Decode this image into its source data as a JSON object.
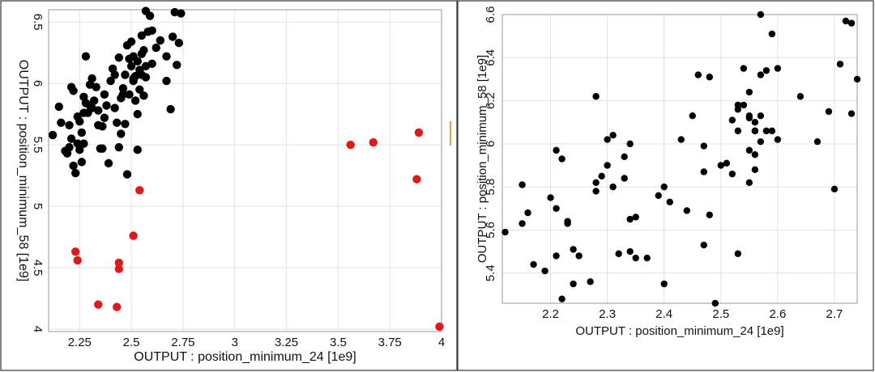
{
  "chart_data": [
    {
      "type": "scatter",
      "title": "",
      "xlabel": "OUTPUT : position_minimum_24 [1e9]",
      "ylabel": "OUTPUT : position_minimum_58 [1e9]",
      "xlim": [
        2.1,
        4.0
      ],
      "ylim": [
        3.98,
        6.6
      ],
      "xticks": [
        "2.25",
        "2.5",
        "2.75",
        "3",
        "3.25",
        "3.5",
        "3.75",
        "4"
      ],
      "yticks": [
        "4",
        "4.5",
        "5",
        "5.5",
        "6",
        "6.5"
      ],
      "grid": true,
      "series": [
        {
          "color": "#000000",
          "points": [
            [
              2.12,
              5.58
            ],
            [
              2.15,
              5.81
            ],
            [
              2.16,
              5.68
            ],
            [
              2.18,
              5.45
            ],
            [
              2.19,
              5.43
            ],
            [
              2.2,
              5.66
            ],
            [
              2.21,
              5.97
            ],
            [
              2.22,
              5.94
            ],
            [
              2.23,
              5.27
            ],
            [
              2.22,
              5.33
            ],
            [
              2.24,
              5.51
            ],
            [
              2.25,
              5.46
            ],
            [
              2.24,
              5.73
            ],
            [
              2.25,
              5.69
            ],
            [
              2.26,
              5.36
            ],
            [
              2.27,
              5.89
            ],
            [
              2.27,
              5.76
            ],
            [
              2.28,
              6.22
            ],
            [
              2.28,
              5.84
            ],
            [
              2.3,
              5.82
            ],
            [
              2.3,
              5.99
            ],
            [
              2.31,
              6.04
            ],
            [
              2.32,
              5.86
            ],
            [
              2.33,
              5.97
            ],
            [
              2.34,
              5.78
            ],
            [
              2.35,
              5.47
            ],
            [
              2.34,
              5.66
            ],
            [
              2.36,
              5.47
            ],
            [
              2.37,
              5.72
            ],
            [
              2.37,
              5.91
            ],
            [
              2.38,
              5.82
            ],
            [
              2.39,
              5.35
            ],
            [
              2.4,
              6.02
            ],
            [
              2.41,
              6.12
            ],
            [
              2.42,
              5.8
            ],
            [
              2.43,
              5.68
            ],
            [
              2.44,
              5.48
            ],
            [
              2.44,
              6.21
            ],
            [
              2.45,
              5.88
            ],
            [
              2.46,
              5.96
            ],
            [
              2.47,
              6.07
            ],
            [
              2.47,
              5.67
            ],
            [
              2.48,
              5.26
            ],
            [
              2.48,
              6.31
            ],
            [
              2.49,
              5.91
            ],
            [
              2.5,
              6.14
            ],
            [
              2.5,
              6.34
            ],
            [
              2.51,
              6.02
            ],
            [
              2.51,
              6.22
            ],
            [
              2.52,
              5.86
            ],
            [
              2.52,
              6.06
            ],
            [
              2.53,
              6.18
            ],
            [
              2.53,
              5.75
            ],
            [
              2.54,
              5.95
            ],
            [
              2.54,
              6.11
            ],
            [
              2.55,
              6.24
            ],
            [
              2.55,
              6.39
            ],
            [
              2.56,
              5.9
            ],
            [
              2.56,
              6.27
            ],
            [
              2.57,
              6.14
            ],
            [
              2.57,
              6.05
            ],
            [
              2.58,
              6.42
            ],
            [
              2.59,
              6.55
            ],
            [
              2.6,
              6.43
            ],
            [
              2.6,
              6.16
            ],
            [
              2.62,
              6.29
            ],
            [
              2.64,
              6.35
            ],
            [
              2.67,
              6.02
            ],
            [
              2.67,
              6.22
            ],
            [
              2.69,
              5.79
            ],
            [
              2.7,
              6.38
            ],
            [
              2.71,
              6.58
            ],
            [
              2.72,
              6.15
            ],
            [
              2.73,
              6.33
            ],
            [
              2.74,
              6.57
            ],
            [
              2.57,
              6.59
            ],
            [
              2.46,
              5.91
            ],
            [
              2.42,
              6.07
            ],
            [
              2.36,
              5.65
            ],
            [
              2.31,
              5.8
            ],
            [
              2.29,
              5.76
            ],
            [
              2.26,
              5.6
            ],
            [
              2.21,
              5.55
            ],
            [
              2.2,
              5.48
            ],
            [
              2.27,
              5.51
            ],
            [
              2.45,
              5.59
            ],
            [
              2.53,
              5.46
            ],
            [
              2.51,
              6.04
            ],
            [
              2.55,
              6.07
            ],
            [
              2.49,
              6.2
            ]
          ]
        },
        {
          "color": "#e11919",
          "points": [
            [
              2.23,
              4.63
            ],
            [
              2.24,
              4.56
            ],
            [
              2.34,
              4.2
            ],
            [
              2.43,
              4.18
            ],
            [
              2.44,
              4.54
            ],
            [
              2.44,
              4.49
            ],
            [
              2.51,
              4.76
            ],
            [
              2.54,
              5.13
            ],
            [
              3.56,
              5.5
            ],
            [
              3.67,
              5.52
            ],
            [
              3.88,
              5.22
            ],
            [
              3.89,
              5.6
            ],
            [
              3.99,
              4.02
            ]
          ]
        }
      ]
    },
    {
      "type": "scatter",
      "title": "",
      "xlabel": "OUTPUT : position_minimum_24 [1e9]",
      "ylabel": "OUTPUT : position_minimum_58 [1e9]",
      "xlim": [
        2.115,
        2.74
      ],
      "ylim": [
        5.26,
        6.6
      ],
      "xticks": [
        "2.2",
        "2.3",
        "2.4",
        "2.5",
        "2.6",
        "2.7"
      ],
      "yticks": [
        "5.4",
        "5.6",
        "5.8",
        "6",
        "6.2",
        "6.4",
        "6.6"
      ],
      "grid": true,
      "series": [
        {
          "color": "#000000",
          "points": [
            [
              2.12,
              5.59
            ],
            [
              2.15,
              5.81
            ],
            [
              2.15,
              5.63
            ],
            [
              2.16,
              5.68
            ],
            [
              2.17,
              5.44
            ],
            [
              2.19,
              5.41
            ],
            [
              2.2,
              5.75
            ],
            [
              2.21,
              5.97
            ],
            [
              2.21,
              5.7
            ],
            [
              2.21,
              5.48
            ],
            [
              2.22,
              5.93
            ],
            [
              2.22,
              5.28
            ],
            [
              2.23,
              5.64
            ],
            [
              2.23,
              5.63
            ],
            [
              2.24,
              5.35
            ],
            [
              2.24,
              5.51
            ],
            [
              2.25,
              5.48
            ],
            [
              2.27,
              5.36
            ],
            [
              2.28,
              6.22
            ],
            [
              2.28,
              5.82
            ],
            [
              2.28,
              5.78
            ],
            [
              2.29,
              5.85
            ],
            [
              2.3,
              5.9
            ],
            [
              2.3,
              6.02
            ],
            [
              2.31,
              6.04
            ],
            [
              2.31,
              5.8
            ],
            [
              2.32,
              5.49
            ],
            [
              2.33,
              5.94
            ],
            [
              2.33,
              5.84
            ],
            [
              2.34,
              6.0
            ],
            [
              2.34,
              5.65
            ],
            [
              2.34,
              5.5
            ],
            [
              2.35,
              5.66
            ],
            [
              2.35,
              5.47
            ],
            [
              2.37,
              5.47
            ],
            [
              2.39,
              5.76
            ],
            [
              2.4,
              5.8
            ],
            [
              2.4,
              5.35
            ],
            [
              2.41,
              5.73
            ],
            [
              2.43,
              6.02
            ],
            [
              2.44,
              5.69
            ],
            [
              2.45,
              6.13
            ],
            [
              2.46,
              6.32
            ],
            [
              2.47,
              5.87
            ],
            [
              2.47,
              5.99
            ],
            [
              2.47,
              5.53
            ],
            [
              2.48,
              6.31
            ],
            [
              2.48,
              5.67
            ],
            [
              2.49,
              5.26
            ],
            [
              2.5,
              5.9
            ],
            [
              2.51,
              5.91
            ],
            [
              2.52,
              5.86
            ],
            [
              2.52,
              6.11
            ],
            [
              2.53,
              6.16
            ],
            [
              2.53,
              6.18
            ],
            [
              2.53,
              5.49
            ],
            [
              2.53,
              6.06
            ],
            [
              2.54,
              6.35
            ],
            [
              2.54,
              6.18
            ],
            [
              2.55,
              6.24
            ],
            [
              2.55,
              6.13
            ],
            [
              2.55,
              5.97
            ],
            [
              2.55,
              5.82
            ],
            [
              2.56,
              6.1
            ],
            [
              2.56,
              6.06
            ],
            [
              2.56,
              5.95
            ],
            [
              2.56,
              5.88
            ],
            [
              2.57,
              6.32
            ],
            [
              2.57,
              6.01
            ],
            [
              2.57,
              6.13
            ],
            [
              2.57,
              6.6
            ],
            [
              2.58,
              6.34
            ],
            [
              2.58,
              6.06
            ],
            [
              2.59,
              6.51
            ],
            [
              2.59,
              6.06
            ],
            [
              2.6,
              6.35
            ],
            [
              2.6,
              6.02
            ],
            [
              2.64,
              6.22
            ],
            [
              2.67,
              6.01
            ],
            [
              2.69,
              6.15
            ],
            [
              2.7,
              5.79
            ],
            [
              2.71,
              6.37
            ],
            [
              2.72,
              6.57
            ],
            [
              2.73,
              6.56
            ],
            [
              2.73,
              6.14
            ],
            [
              2.74,
              6.3
            ],
            [
              2.56,
              6.06
            ],
            [
              2.55,
              6.12
            ]
          ]
        }
      ]
    }
  ]
}
